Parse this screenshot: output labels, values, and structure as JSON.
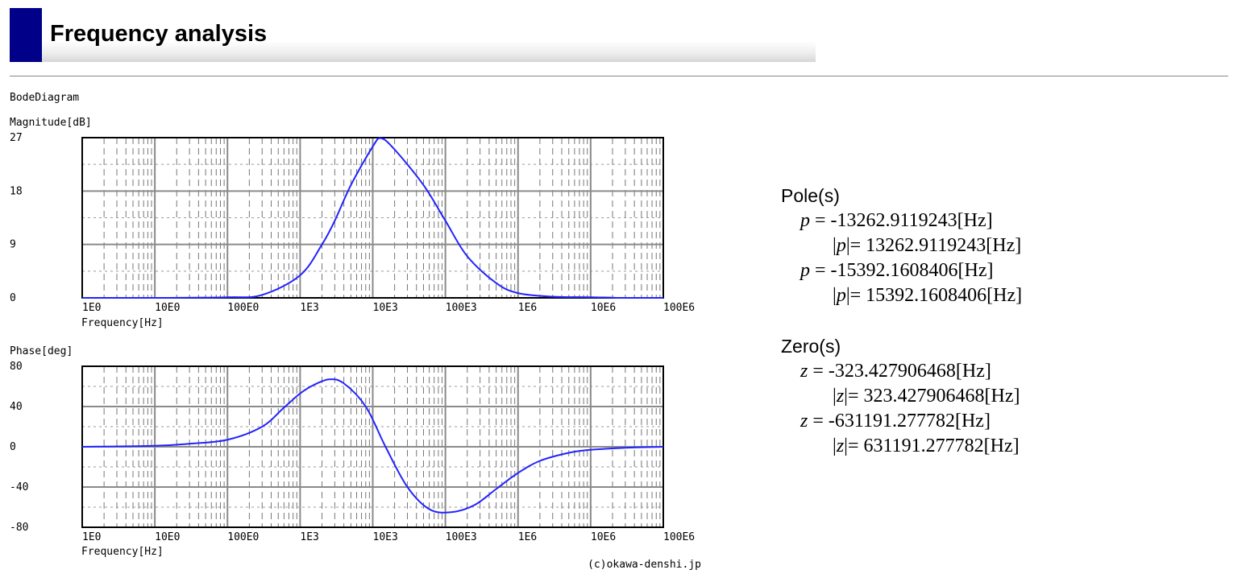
{
  "header": {
    "title": "Frequency analysis"
  },
  "chart_data": {
    "type": "line",
    "title": "BodeDiagram",
    "credit": "(c)okawa-denshi.jp",
    "x_scale": "log",
    "x_ticks": [
      "1E0",
      "10E0",
      "100E0",
      "1E3",
      "10E3",
      "100E3",
      "1E6",
      "10E6",
      "100E6"
    ],
    "x_tick_values": [
      1,
      10,
      100,
      1000,
      10000,
      100000,
      1000000,
      10000000,
      100000000
    ],
    "xlim": [
      1,
      100000000
    ],
    "grid": true,
    "line_color": "#2222ff",
    "plots": [
      {
        "name": "magnitude",
        "ylabel": "Magnitude[dB]",
        "xlabel": "Frequency[Hz]",
        "ylim": [
          0,
          27
        ],
        "y_ticks": [
          27,
          18,
          9,
          0
        ],
        "series": [
          {
            "x": [
              1,
              10,
              100,
              300,
              1000,
              2000,
              3000,
              5000,
              10000,
              13000,
              20000,
              50000,
              100000,
              200000,
              500000,
              1000000,
              3000000,
              10000000,
              30000000,
              100000000
            ],
            "y": [
              0,
              0,
              0.1,
              0.5,
              3.8,
              9,
              13,
              19,
              25.5,
              26.9,
              25,
              19,
              13,
              7,
              2.5,
              0.8,
              0.2,
              0.1,
              0,
              0
            ]
          }
        ]
      },
      {
        "name": "phase",
        "ylabel": "Phase[deg]",
        "xlabel": "Frequency[Hz]",
        "ylim": [
          -80,
          80
        ],
        "y_ticks": [
          80,
          40,
          0,
          -40,
          -80
        ],
        "series": [
          {
            "x": [
              1,
              10,
              30,
              100,
              300,
              600,
              1000,
              1500,
              2500,
              4000,
              8000,
              15000,
              30000,
              60000,
              120000,
              250000,
              500000,
              1000000,
              2000000,
              5000000,
              10000000,
              30000000,
              100000000
            ],
            "y": [
              0,
              1,
              3,
              7,
              20,
              39,
              53,
              61,
              67,
              63,
              40,
              0,
              -40,
              -62,
              -65,
              -58,
              -42,
              -26,
              -14,
              -6,
              -3,
              -1,
              0
            ]
          }
        ]
      }
    ]
  },
  "poles": {
    "heading": "Pole(s)",
    "items": [
      {
        "sym": "p",
        "val": " = -13262.9119243[Hz]",
        "abs": "= 13262.9119243[Hz]"
      },
      {
        "sym": "p",
        "val": " = -15392.1608406[Hz]",
        "abs": "= 15392.1608406[Hz]"
      }
    ]
  },
  "zeros": {
    "heading": "Zero(s)",
    "items": [
      {
        "sym": "z",
        "val": " = -323.427906468[Hz]",
        "abs": "= 323.427906468[Hz]"
      },
      {
        "sym": "z",
        "val": " = -631191.277782[Hz]",
        "abs": "= 631191.277782[Hz]"
      }
    ]
  }
}
